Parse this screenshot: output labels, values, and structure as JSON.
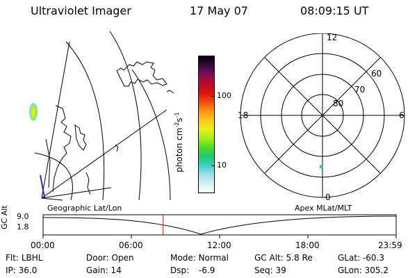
{
  "header": {
    "title": "Ultraviolet Imager",
    "date": "17 May 07",
    "time": "08:09:15 UT"
  },
  "colorbar": {
    "label": "photon cm",
    "label_sup1": "-2",
    "label_mid": "s",
    "label_sup2": "-1",
    "ticks": [
      {
        "label": "100",
        "frac": 0.29
      },
      {
        "label": "10",
        "frac": 0.8
      }
    ],
    "colors": [
      "#ffffff",
      "#d8eef2",
      "#9ee0e6",
      "#3ecfc2",
      "#1ec86e",
      "#4edc2e",
      "#a8ec1e",
      "#e6f01a",
      "#f8c81a",
      "#f89414",
      "#f24a10",
      "#d8140e",
      "#b80c2a",
      "#7e0e5a",
      "#3a0a3e",
      "#000000"
    ]
  },
  "polar": {
    "labels": {
      "top": "12",
      "left": "18",
      "right": "6",
      "bottom": "0"
    },
    "rings": [
      "60",
      "70",
      "80"
    ]
  },
  "timeline": {
    "ylabel": "GC Alt",
    "ytick_top": "9.0",
    "ytick_bottom": "1.8",
    "left_label": "Geographic Lat/Lon",
    "right_label": "Apex MLat/MLT",
    "ticks": [
      "00:00",
      "06:00",
      "12:00",
      "18:00",
      "23:59"
    ],
    "marker_time": "08:09"
  },
  "info": {
    "flt_label": "Flt:",
    "flt_value": "LBHL",
    "ip_label": "IP:",
    "ip_value": "36.0",
    "door_label": "Door:",
    "door_value": "Open",
    "gain_label": "Gain:",
    "gain_value": "14",
    "mode_label": "Mode:",
    "mode_value": "Normal",
    "dsp_label": "Dsp:",
    "dsp_value": "-6.9",
    "gcalt_label": "GC Alt:",
    "gcalt_value": "5.8 Re",
    "seq_label": "Seq:",
    "seq_value": "39",
    "glat_label": "GLat:",
    "glat_value": "-60.3",
    "glon_label": "GLon:",
    "glon_value": "305.2"
  }
}
